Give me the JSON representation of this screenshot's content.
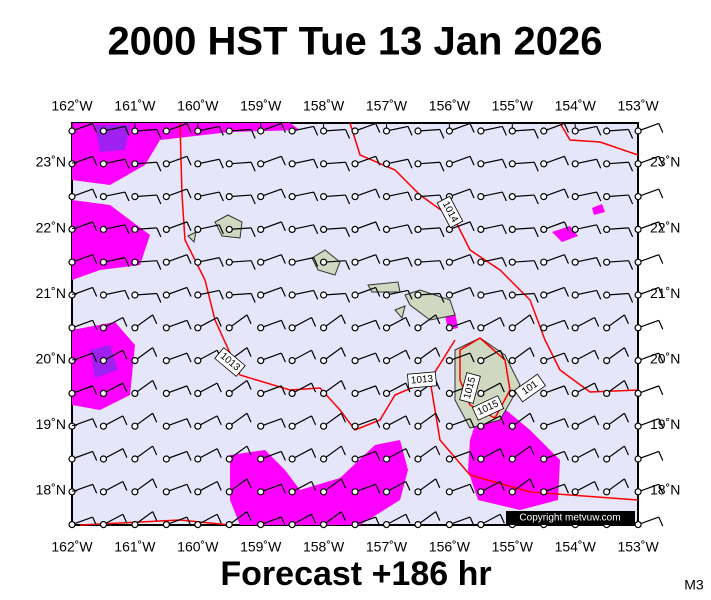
{
  "header": {
    "title": "2000 HST Tue 13 Jan 2026"
  },
  "map": {
    "lon_labels": [
      "162˚W",
      "161˚W",
      "160˚W",
      "159˚W",
      "158˚W",
      "157˚W",
      "156˚W",
      "155˚W",
      "154˚W",
      "153˚W"
    ],
    "lat_labels": [
      "23˚N",
      "22˚N",
      "21˚N",
      "20˚N",
      "19˚N",
      "18˚N"
    ],
    "isobar_labels": [
      "1014",
      "1013",
      "1013",
      "1015",
      "1015",
      "101"
    ],
    "copyright": "Copyright metvuw.com"
  },
  "footer": {
    "text": "Forecast +186 hr",
    "model": "M3"
  }
}
